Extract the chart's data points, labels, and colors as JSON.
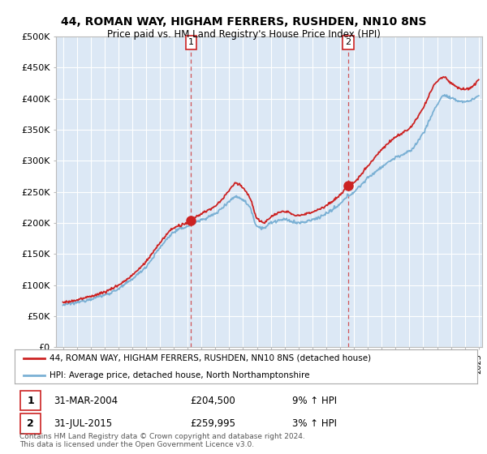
{
  "title": "44, ROMAN WAY, HIGHAM FERRERS, RUSHDEN, NN10 8NS",
  "subtitle": "Price paid vs. HM Land Registry's House Price Index (HPI)",
  "ylim": [
    0,
    500000
  ],
  "yticks": [
    0,
    50000,
    100000,
    150000,
    200000,
    250000,
    300000,
    350000,
    400000,
    450000,
    500000
  ],
  "ytick_labels": [
    "£0",
    "£50K",
    "£100K",
    "£150K",
    "£200K",
    "£250K",
    "£300K",
    "£350K",
    "£400K",
    "£450K",
    "£500K"
  ],
  "plot_bg": "#dce8f5",
  "red_color": "#cc2222",
  "blue_color": "#7ab0d4",
  "transaction1_year": 2004.25,
  "transaction1_y": 204500,
  "transaction2_year": 2015.58,
  "transaction2_y": 259995,
  "legend_line1": "44, ROMAN WAY, HIGHAM FERRERS, RUSHDEN, NN10 8NS (detached house)",
  "legend_line2": "HPI: Average price, detached house, North Northamptonshire",
  "ann1_date": "31-MAR-2004",
  "ann1_price": "£204,500",
  "ann1_hpi": "9% ↑ HPI",
  "ann2_date": "31-JUL-2015",
  "ann2_price": "£259,995",
  "ann2_hpi": "3% ↑ HPI",
  "footer": "Contains HM Land Registry data © Crown copyright and database right 2024.\nThis data is licensed under the Open Government Licence v3.0.",
  "xmin": 1995,
  "xmax": 2025
}
